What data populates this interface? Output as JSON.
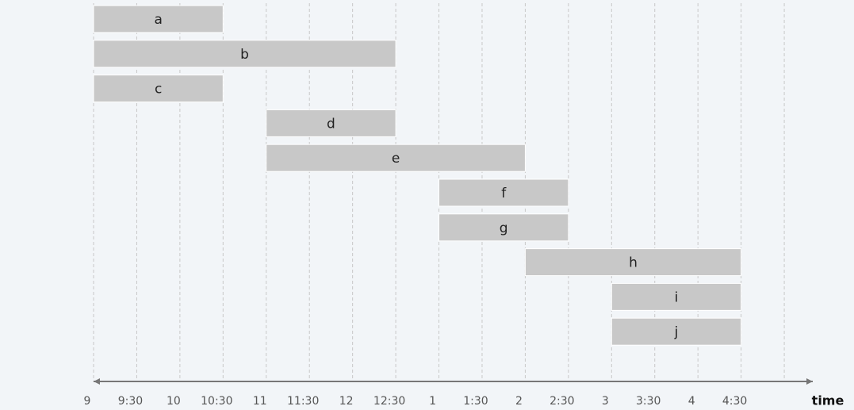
{
  "chart_data": {
    "type": "gantt",
    "x_label": "time",
    "color": "#c8c8c8",
    "grid": true,
    "xlim": [
      9,
      17.33
    ],
    "xticks": [
      9,
      {
        "value": 9.5,
        "label": "9:30"
      },
      10,
      {
        "value": 10.5,
        "label": "10:30"
      },
      11,
      {
        "value": 11.5,
        "label": "11:30"
      },
      12,
      {
        "value": 12.5,
        "label": "12:30"
      },
      {
        "value": 13,
        "label": "1"
      },
      {
        "value": 13.5,
        "label": "1:30"
      },
      {
        "value": 14,
        "label": "2"
      },
      {
        "value": 14.5,
        "label": "2:30"
      },
      {
        "value": 15,
        "label": "3"
      },
      {
        "value": 15.5,
        "label": "3:30"
      },
      {
        "value": 16,
        "label": "4"
      },
      {
        "value": 16.5,
        "label": "4:30"
      },
      {
        "value": 17,
        "label": null
      }
    ],
    "tasks": [
      {
        "name": "a",
        "start": 9,
        "end": 10.5
      },
      {
        "name": "b",
        "start": 9,
        "end": 12.5
      },
      {
        "name": "c",
        "start": 9,
        "end": 10.5
      },
      {
        "name": "d",
        "start": 11,
        "end": 12.5
      },
      {
        "name": "e",
        "start": 11,
        "end": 14
      },
      {
        "name": "f",
        "start": 13,
        "end": 14.5
      },
      {
        "name": "g",
        "start": 13,
        "end": 14.5
      },
      {
        "name": "h",
        "start": 14,
        "end": 16.5
      },
      {
        "name": "i",
        "start": 15,
        "end": 16.5
      },
      {
        "name": "j",
        "start": 15,
        "end": 16.5
      }
    ]
  }
}
